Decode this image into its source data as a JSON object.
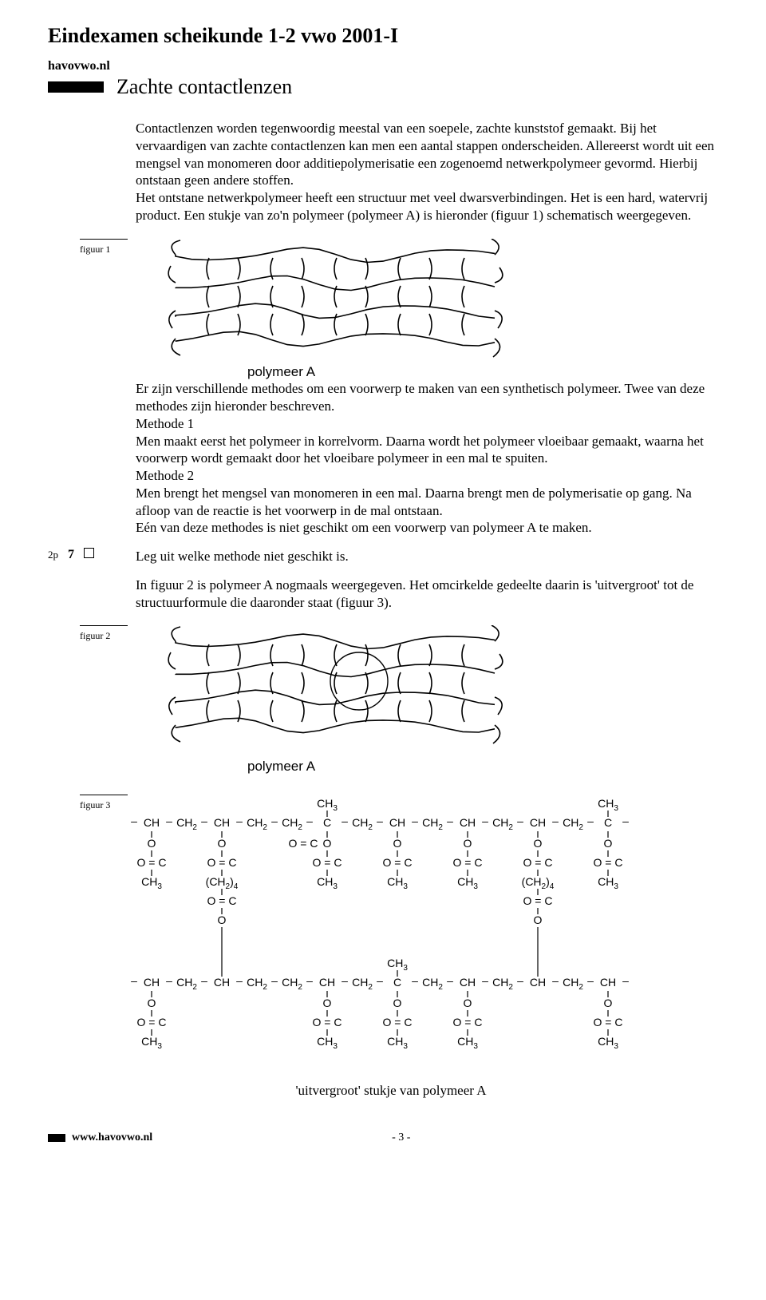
{
  "header": {
    "exam_title": "Eindexamen scheikunde 1-2  vwo 2001-I",
    "site": "havovwo.nl",
    "section_title": "Zachte contactlenzen"
  },
  "intro": {
    "p1": "Contactlenzen worden tegenwoordig meestal van een soepele, zachte kunststof gemaakt. Bij het vervaardigen van zachte contactlenzen kan men een aantal stappen onderscheiden. Allereerst wordt uit een mengsel van monomeren door additiepolymerisatie een zogenoemd netwerkpolymeer gevormd. Hierbij ontstaan geen andere stoffen.",
    "p2": "Het ontstane netwerkpolymeer heeft een structuur met veel dwarsverbindingen. Het is een hard, watervrij product. Een stukje van zo'n polymeer (polymeer A) is hieronder (figuur 1) schematisch weergegeven."
  },
  "figures": {
    "f1_label": "figuur 1",
    "f2_label": "figuur 2",
    "f3_label": "figuur 3",
    "polymer_caption": "polymeer A",
    "chem_caption": "'uitvergroot' stukje van polymeer A"
  },
  "mid": {
    "p1": "Er zijn verschillende methodes om een voorwerp te maken van een synthetisch polymeer. Twee van deze methodes zijn hieronder beschreven.",
    "m1_title": "Methode 1",
    "m1_body": "Men maakt eerst het polymeer in korrelvorm. Daarna wordt het polymeer vloeibaar gemaakt, waarna het voorwerp wordt gemaakt door het vloeibare polymeer in een mal te spuiten.",
    "m2_title": "Methode 2",
    "m2_body": "Men brengt het mengsel van monomeren in een mal. Daarna brengt men de polymerisatie op gang. Na afloop van de reactie is het voorwerp in de mal ontstaan.",
    "p_one": "Eén van deze methodes is niet geschikt om een voorwerp van polymeer A te maken."
  },
  "question": {
    "points": "2p",
    "number": "7",
    "text": "Leg uit welke methode niet geschikt is."
  },
  "after_q": {
    "p1": "In figuur 2 is polymeer A nogmaals weergegeven. Het omcirkelde gedeelte daarin is 'uitvergroot' tot de structuurformule die daaronder staat (figuur 3)."
  },
  "chem": {
    "labels": {
      "CH3": "CH",
      "CH3_sub": "3",
      "CH2": "CH",
      "CH2_sub": "2",
      "CH": "CH",
      "C": "C",
      "O": "O",
      "OC": "O = C",
      "CH24": "(CH",
      "CH24_sub": "2",
      "CH24_tail": ")",
      "CH24_n": "4"
    }
  },
  "footer": {
    "url": "www.havovwo.nl",
    "page": "- 3 -"
  },
  "style": {
    "stroke": "#000000",
    "stroke_width": 1.6,
    "circle_stroke_width": 1.4
  }
}
